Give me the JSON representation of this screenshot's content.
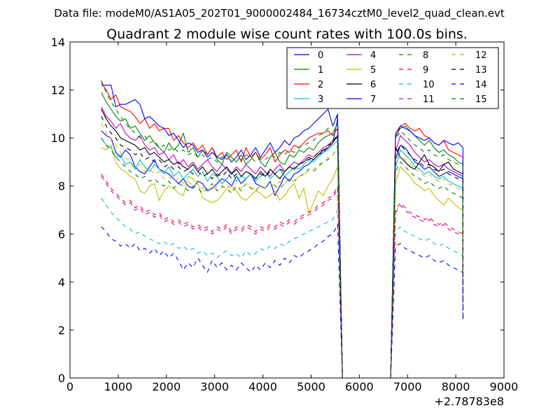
{
  "chart_data": {
    "type": "line",
    "suptitle": "Data file: modeM0/AS1A05_202T01_9000002484_16734cztM0_level2_quad_clean.evt",
    "title": "Quadrant 2 module wise count rates with 100.0s bins.",
    "xlabel": "",
    "ylabel": "",
    "x_offset_label": "+2.78783e8",
    "xlim": [
      0,
      9000
    ],
    "ylim": [
      0,
      14
    ],
    "xticks": [
      0,
      1000,
      2000,
      3000,
      4000,
      5000,
      6000,
      7000,
      8000,
      9000
    ],
    "yticks": [
      0,
      2,
      4,
      6,
      8,
      10,
      12,
      14
    ],
    "grid": false,
    "legend_position": "top-right",
    "legend_columns": 4,
    "segment1": {
      "x_start": 650,
      "x_end": 5450,
      "step": 100
    },
    "gap": {
      "fall_to": 5650,
      "zero_until": 6650
    },
    "segment2": {
      "x_start": 6750,
      "x_end": 8150,
      "step": 100
    },
    "series": [
      {
        "name": "0",
        "color": "#0000ff",
        "dash": "solid",
        "seg1": [
          10.3,
          10.1,
          10.0,
          9.4,
          9.2,
          9.5,
          9.3,
          8.8,
          8.6,
          8.5,
          8.8,
          9.1,
          8.7,
          8.6,
          8.5,
          8.3,
          8.1,
          8.3,
          8.0,
          7.9,
          8.2,
          8.1,
          7.8,
          7.9,
          8.1,
          8.3,
          8.2,
          8.0,
          8.4,
          8.1,
          8.3,
          8.5,
          8.1,
          8.0,
          7.9,
          8.2,
          7.6,
          8.0,
          8.4,
          8.2,
          8.5,
          8.6,
          8.8,
          8.9,
          9.1,
          9.3,
          9.4,
          9.6,
          9.8
        ],
        "tail": 10.8,
        "seg2": [
          9.1,
          9.7,
          9.6,
          9.3,
          9.0,
          8.9,
          8.7,
          8.8,
          8.6,
          8.4,
          8.5,
          8.6,
          8.5,
          8.4,
          8.3
        ],
        "end": 4.6
      },
      {
        "name": "1",
        "color": "#008000",
        "dash": "solid",
        "seg1": [
          11.9,
          11.5,
          11.2,
          10.9,
          10.7,
          10.8,
          10.4,
          10.5,
          10.2,
          9.9,
          10.1,
          9.8,
          9.6,
          9.4,
          9.8,
          9.5,
          9.7,
          10.2,
          9.4,
          9.6,
          9.2,
          9.5,
          9.3,
          9.6,
          9.1,
          8.9,
          9.4,
          9.2,
          9.0,
          9.3,
          8.9,
          9.1,
          9.4,
          9.0,
          8.8,
          9.2,
          9.4,
          9.0,
          8.9,
          9.3,
          9.2,
          9.5,
          9.4,
          9.6,
          9.5,
          9.8,
          10.0,
          10.1,
          10.2
        ],
        "tail": 10.6,
        "seg2": [
          10.1,
          10.4,
          10.5,
          10.3,
          10.1,
          9.9,
          9.7,
          9.9,
          9.6,
          9.4,
          9.5,
          9.3,
          9.2,
          9.0,
          8.9
        ],
        "end": 4.6
      },
      {
        "name": "2",
        "color": "#ff0000",
        "dash": "solid",
        "seg1": [
          12.3,
          12.0,
          11.6,
          11.8,
          11.3,
          11.2,
          11.1,
          10.9,
          10.6,
          10.8,
          10.4,
          10.6,
          10.3,
          10.4,
          10.4,
          9.9,
          10.1,
          9.8,
          9.6,
          9.8,
          9.5,
          9.7,
          9.3,
          9.6,
          9.2,
          9.4,
          9.1,
          9.3,
          9.5,
          9.0,
          9.6,
          9.2,
          9.4,
          9.1,
          9.3,
          9.6,
          9.0,
          9.3,
          9.5,
          9.4,
          9.7,
          9.6,
          9.8,
          10.0,
          10.1,
          10.2,
          10.2,
          10.3,
          10.1
        ],
        "tail": 10.4,
        "seg2": [
          10.2,
          10.5,
          10.6,
          10.4,
          10.3,
          10.4,
          10.1,
          10.0,
          9.8,
          9.7,
          9.9,
          9.5,
          9.4,
          9.3,
          9.2
        ],
        "end": 4.6
      },
      {
        "name": "3",
        "color": "#00bfbf",
        "dash": "solid",
        "seg1": [
          10.0,
          9.7,
          9.6,
          9.2,
          9.3,
          8.9,
          9.0,
          8.7,
          9.1,
          8.8,
          8.6,
          8.9,
          8.7,
          8.5,
          8.8,
          8.4,
          8.6,
          8.3,
          8.5,
          8.7,
          8.4,
          8.6,
          8.2,
          8.5,
          8.4,
          8.1,
          8.3,
          8.6,
          8.2,
          8.4,
          8.3,
          8.5,
          8.2,
          8.4,
          8.6,
          8.3,
          8.5,
          8.7,
          8.4,
          8.6,
          8.8,
          8.7,
          8.9,
          9.1,
          9.0,
          9.2,
          9.4,
          9.5,
          9.7
        ],
        "tail": 9.9,
        "seg2": [
          8.8,
          9.5,
          9.3,
          9.1,
          8.8,
          8.7,
          8.5,
          8.6,
          8.4,
          8.3,
          8.4,
          8.2,
          8.1,
          8.0,
          7.9
        ],
        "end": 4.2
      },
      {
        "name": "4",
        "color": "#bf00bf",
        "dash": "solid",
        "seg1": [
          11.3,
          10.9,
          10.7,
          10.4,
          10.6,
          10.2,
          10.0,
          9.9,
          10.1,
          9.7,
          9.5,
          9.6,
          9.3,
          9.4,
          9.1,
          9.3,
          8.9,
          9.1,
          8.8,
          9.0,
          8.7,
          8.9,
          9.1,
          8.8,
          8.6,
          8.9,
          8.7,
          8.5,
          8.8,
          8.6,
          8.9,
          8.7,
          8.5,
          8.8,
          8.6,
          8.4,
          8.7,
          8.9,
          8.6,
          8.8,
          9.0,
          8.9,
          9.1,
          9.3,
          9.2,
          9.4,
          9.6,
          9.7,
          9.9
        ],
        "tail": 10.0,
        "seg2": [
          9.4,
          10.1,
          9.9,
          9.7,
          9.4,
          9.2,
          9.0,
          9.1,
          8.9,
          8.8,
          8.9,
          8.7,
          8.6,
          8.5,
          8.4
        ],
        "end": 4.4
      },
      {
        "name": "5",
        "color": "#bfbf00",
        "dash": "solid",
        "seg1": [
          9.6,
          9.5,
          9.7,
          9.0,
          8.7,
          8.6,
          8.4,
          8.3,
          7.8,
          7.7,
          8.0,
          8.1,
          7.4,
          7.8,
          8.0,
          7.9,
          7.7,
          7.6,
          8.4,
          8.3,
          8.1,
          7.5,
          7.4,
          7.3,
          7.4,
          7.6,
          7.9,
          8.0,
          7.8,
          7.5,
          7.4,
          7.6,
          7.8,
          7.7,
          7.5,
          7.6,
          7.8,
          7.4,
          7.6,
          7.9,
          8.1,
          7.5,
          7.9,
          6.9,
          7.3,
          7.8,
          7.6,
          8.0,
          8.3
        ],
        "tail": 8.8,
        "seg2": [
          8.1,
          8.8,
          8.6,
          8.4,
          8.1,
          8.0,
          7.8,
          7.9,
          7.6,
          7.4,
          7.2,
          7.5,
          7.3,
          7.1,
          7.0
        ],
        "end": 4.0
      },
      {
        "name": "6",
        "color": "#000000",
        "dash": "solid",
        "seg1": [
          11.2,
          10.8,
          10.5,
          10.3,
          10.0,
          9.9,
          9.8,
          9.7,
          9.5,
          9.6,
          9.3,
          9.4,
          9.2,
          9.0,
          9.1,
          8.9,
          9.0,
          8.8,
          8.7,
          8.9,
          8.6,
          8.8,
          8.5,
          8.7,
          8.4,
          8.6,
          8.8,
          8.5,
          8.7,
          8.4,
          8.6,
          8.5,
          8.3,
          8.6,
          8.4,
          8.7,
          8.5,
          8.3,
          8.6,
          8.8,
          8.7,
          8.9,
          9.0,
          9.2,
          9.1,
          9.3,
          9.5,
          9.6,
          9.8
        ],
        "tail": 10.1,
        "seg2": [
          9.6,
          9.2,
          9.0,
          8.8,
          8.7,
          9.0,
          9.3,
          8.9,
          8.8,
          8.6,
          8.9,
          9.0,
          8.7,
          8.6,
          8.5
        ],
        "end": 4.4
      },
      {
        "name": "7",
        "color": "#0000ff",
        "dash": "solid",
        "seg1": [
          12.2,
          12.2,
          12.2,
          11.3,
          11.4,
          11.4,
          11.5,
          11.6,
          11.4,
          10.8,
          10.9,
          10.7,
          10.5,
          10.4,
          10.1,
          10.2,
          9.9,
          9.6,
          9.8,
          9.7,
          9.4,
          9.5,
          9.2,
          9.4,
          9.2,
          9.1,
          9.3,
          9.0,
          9.2,
          9.5,
          9.1,
          9.3,
          9.6,
          9.2,
          9.5,
          9.8,
          9.4,
          9.6,
          9.9,
          9.7,
          10.0,
          10.1,
          10.3,
          10.4,
          10.6,
          10.8,
          11.0,
          11.2,
          10.5
        ],
        "tail": 11.0,
        "seg2": [
          10.0,
          10.5,
          10.4,
          10.3,
          10.1,
          10.0,
          9.9,
          10.0,
          9.8,
          9.7,
          9.9,
          9.8,
          9.7,
          9.8,
          9.6
        ],
        "end": 4.6
      },
      {
        "name": "8",
        "color": "#008000",
        "dash": "dashed",
        "seg1": [
          10.0,
          9.7,
          9.5,
          9.2,
          9.0,
          8.8,
          8.6,
          8.5,
          8.3,
          8.4,
          8.2,
          8.3,
          8.1,
          8.0,
          8.2,
          7.9,
          8.1,
          8.0,
          7.8,
          8.0,
          7.9,
          7.7,
          7.9,
          8.1,
          7.8,
          8.0,
          7.9,
          7.7,
          8.0,
          7.8,
          8.1,
          7.9,
          7.8,
          8.0,
          7.9,
          8.2,
          8.0,
          7.9,
          8.1,
          8.3,
          8.2,
          8.4,
          8.5,
          8.7,
          8.6,
          8.8,
          9.0,
          9.1,
          9.3
        ],
        "tail": 9.6,
        "seg2": [
          8.6,
          9.0,
          8.8,
          8.6,
          8.4,
          8.3,
          8.1,
          8.2,
          8.0,
          7.9,
          8.0,
          7.8,
          7.7,
          7.6,
          7.5
        ],
        "end": 4.0
      },
      {
        "name": "9",
        "color": "#ff0000",
        "dash": "dashed",
        "seg1": [
          8.5,
          8.2,
          7.9,
          7.7,
          7.5,
          7.3,
          7.4,
          7.1,
          7.2,
          6.9,
          7.0,
          6.8,
          6.9,
          6.6,
          6.7,
          6.5,
          6.6,
          6.4,
          6.5,
          6.3,
          6.4,
          6.2,
          6.3,
          6.1,
          6.3,
          6.2,
          6.4,
          6.1,
          6.3,
          6.2,
          6.4,
          6.3,
          6.1,
          6.3,
          6.2,
          6.4,
          6.3,
          6.5,
          6.4,
          6.6,
          6.5,
          6.7,
          6.8,
          6.9,
          7.0,
          7.2,
          7.3,
          7.5,
          7.6
        ],
        "tail": 8.0,
        "seg2": [
          7.0,
          7.3,
          7.1,
          6.9,
          6.8,
          6.7,
          6.6,
          6.7,
          6.5,
          6.4,
          6.5,
          6.3,
          6.2,
          6.1,
          6.0
        ],
        "end": 3.2
      },
      {
        "name": "10",
        "color": "#00bfbf",
        "dash": "dashed",
        "seg1": [
          7.5,
          7.2,
          6.9,
          6.7,
          6.5,
          6.3,
          6.2,
          6.0,
          6.1,
          5.9,
          5.8,
          5.7,
          5.6,
          5.7,
          5.5,
          5.6,
          5.4,
          5.5,
          5.3,
          5.4,
          5.2,
          5.3,
          5.1,
          5.2,
          5.0,
          5.2,
          5.3,
          5.1,
          5.2,
          5.0,
          5.3,
          5.1,
          5.2,
          5.4,
          5.3,
          5.5,
          5.4,
          5.6,
          5.5,
          5.7,
          5.8,
          5.9,
          6.0,
          6.1,
          6.2,
          6.3,
          6.4,
          6.5,
          6.6
        ],
        "tail": 7.0,
        "seg2": [
          6.1,
          6.3,
          6.1,
          6.0,
          5.9,
          5.8,
          5.7,
          5.8,
          5.6,
          5.5,
          5.6,
          5.4,
          5.3,
          5.2,
          5.1
        ],
        "end": 2.8
      },
      {
        "name": "11",
        "color": "#bf00bf",
        "dash": "dashed",
        "seg1": [
          8.4,
          8.1,
          7.8,
          7.6,
          7.4,
          7.2,
          7.3,
          7.0,
          7.1,
          6.8,
          6.9,
          6.7,
          6.8,
          6.5,
          6.6,
          6.4,
          6.5,
          6.3,
          6.4,
          6.2,
          6.3,
          6.1,
          6.2,
          6.0,
          6.2,
          6.1,
          6.3,
          6.0,
          6.2,
          6.1,
          6.3,
          6.2,
          6.0,
          6.2,
          6.1,
          6.3,
          6.2,
          6.4,
          6.3,
          6.5,
          6.4,
          6.6,
          6.7,
          6.8,
          6.9,
          7.1,
          7.2,
          7.4,
          7.5
        ],
        "tail": 7.9,
        "seg2": [
          6.9,
          7.2,
          7.0,
          6.8,
          6.7,
          6.6,
          6.5,
          6.6,
          6.4,
          6.3,
          6.4,
          6.2,
          6.1,
          6.0,
          5.9
        ],
        "end": 3.1
      },
      {
        "name": "12",
        "color": "#bfbf00",
        "dash": "dashed",
        "seg1": [
          10.6,
          10.2,
          10.0,
          9.7,
          9.4,
          9.2,
          9.0,
          8.8,
          8.9,
          8.6,
          8.7,
          8.5,
          8.6,
          8.3,
          8.4,
          8.2,
          8.3,
          8.1,
          8.2,
          8.0,
          8.1,
          7.9,
          8.0,
          7.8,
          8.0,
          7.9,
          8.1,
          7.8,
          8.0,
          7.9,
          8.1,
          8.0,
          7.8,
          8.0,
          7.9,
          8.1,
          8.0,
          8.2,
          8.1,
          8.3,
          8.2,
          8.4,
          8.5,
          8.6,
          8.7,
          8.9,
          9.0,
          9.2,
          9.3
        ],
        "tail": 9.7,
        "seg2": [
          8.9,
          9.3,
          9.1,
          8.9,
          8.7,
          8.6,
          8.4,
          8.5,
          8.3,
          8.2,
          8.3,
          8.1,
          8.0,
          7.9,
          7.8
        ],
        "end": 4.1
      },
      {
        "name": "13",
        "color": "#000000",
        "dash": "dashed",
        "seg1": [
          10.9,
          10.5,
          10.2,
          10.0,
          9.7,
          9.6,
          9.5,
          9.3,
          9.4,
          9.1,
          9.2,
          9.0,
          9.1,
          8.8,
          8.9,
          8.7,
          8.8,
          8.6,
          8.7,
          8.5,
          8.6,
          8.4,
          8.5,
          8.3,
          8.5,
          8.4,
          8.6,
          8.3,
          8.5,
          8.4,
          8.6,
          8.5,
          8.3,
          8.5,
          8.4,
          8.6,
          8.5,
          8.7,
          8.6,
          8.8,
          8.7,
          8.9,
          9.0,
          9.1,
          9.2,
          9.4,
          9.5,
          9.7,
          9.8
        ],
        "tail": 10.2,
        "seg2": [
          9.3,
          9.7,
          9.5,
          9.3,
          9.1,
          9.0,
          8.8,
          8.9,
          8.7,
          8.6,
          8.7,
          8.5,
          8.4,
          8.3,
          8.2
        ],
        "end": 2.4
      },
      {
        "name": "14",
        "color": "#0000ff",
        "dash": "dashed",
        "seg1": [
          6.3,
          6.1,
          5.8,
          5.7,
          5.5,
          5.6,
          5.4,
          5.6,
          5.3,
          5.4,
          5.2,
          5.4,
          5.1,
          5.3,
          5.0,
          5.2,
          4.9,
          4.5,
          4.8,
          4.6,
          5.0,
          4.7,
          4.4,
          4.9,
          4.6,
          4.8,
          4.5,
          4.7,
          4.5,
          4.8,
          4.6,
          4.4,
          4.7,
          4.5,
          4.8,
          4.6,
          4.9,
          4.7,
          5.0,
          4.8,
          5.1,
          5.0,
          5.2,
          5.3,
          5.4,
          5.6,
          5.7,
          5.9,
          6.0
        ],
        "tail": 6.4,
        "seg2": [
          5.5,
          5.6,
          5.4,
          5.3,
          5.2,
          5.1,
          5.0,
          5.1,
          4.9,
          4.8,
          4.9,
          4.7,
          4.6,
          4.5,
          4.4
        ],
        "end": 2.6
      },
      {
        "name": "15",
        "color": "#008000",
        "dash": "dashed",
        "seg1": [
          12.4,
          11.9,
          11.5,
          11.2,
          10.9,
          10.6,
          10.4,
          10.2,
          10.0,
          10.1,
          9.8,
          9.9,
          9.6,
          9.7,
          9.5,
          9.6,
          9.4,
          9.5,
          9.3,
          9.4,
          9.2,
          9.3,
          9.1,
          9.2,
          9.0,
          9.2,
          9.3,
          9.0,
          9.2,
          9.1,
          9.3,
          9.2,
          9.0,
          9.2,
          9.1,
          9.3,
          9.2,
          9.4,
          9.3,
          9.5,
          9.4,
          9.6,
          9.7,
          9.8,
          9.9,
          10.1,
          10.2,
          10.4,
          10.5
        ],
        "tail": 10.9,
        "seg2": [
          9.9,
          10.3,
          10.1,
          9.9,
          9.7,
          9.6,
          9.4,
          9.5,
          9.3,
          9.2,
          9.3,
          9.1,
          9.0,
          8.9,
          8.8
        ],
        "end": 4.4
      }
    ]
  }
}
